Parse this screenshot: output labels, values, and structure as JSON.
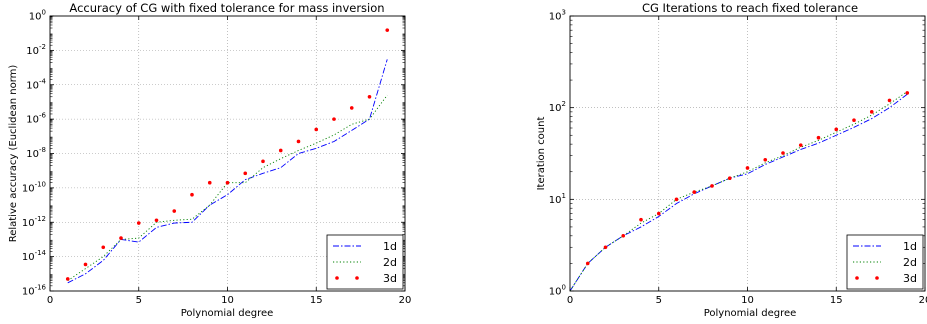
{
  "chart_data": [
    {
      "type": "line",
      "title": "Accuracy of CG with fixed tolerance for mass inversion",
      "xlabel": "Polynomial degree",
      "ylabel": "Relative accuracy (Euclidean norm)",
      "xlim": [
        0,
        20
      ],
      "ylim": [
        1e-16,
        1
      ],
      "yscale": "log",
      "grid": true,
      "legend_position": "lower-right",
      "x_ticks": [
        {
          "value": 0,
          "label": "0"
        },
        {
          "value": 5,
          "label": "5"
        },
        {
          "value": 10,
          "label": "10"
        },
        {
          "value": 15,
          "label": "15"
        },
        {
          "value": 20,
          "label": "20"
        }
      ],
      "y_ticks": [
        {
          "value": 1e-16,
          "base": "10",
          "exp": "-16"
        },
        {
          "value": 1e-14,
          "base": "10",
          "exp": "-14"
        },
        {
          "value": 1e-12,
          "base": "10",
          "exp": "-12"
        },
        {
          "value": 1e-10,
          "base": "10",
          "exp": "-10"
        },
        {
          "value": 1e-08,
          "base": "10",
          "exp": "-8"
        },
        {
          "value": 1e-06,
          "base": "10",
          "exp": "-6"
        },
        {
          "value": 0.0001,
          "base": "10",
          "exp": "-4"
        },
        {
          "value": 0.01,
          "base": "10",
          "exp": "-2"
        },
        {
          "value": 1,
          "base": "10",
          "exp": "0"
        }
      ],
      "series": [
        {
          "name": "1d",
          "style": "dashdot",
          "color": "#0000ff",
          "x": [
            1,
            2,
            3,
            4,
            5,
            6,
            7,
            8,
            9,
            10,
            11,
            12,
            13,
            14,
            15,
            16,
            17,
            18,
            19
          ],
          "y": [
            3e-16,
            1e-15,
            6e-15,
            1e-13,
            7e-14,
            5e-13,
            9e-13,
            1e-12,
            1e-11,
            4e-11,
            3e-10,
            7e-10,
            1.5e-09,
            1e-08,
            2e-08,
            5e-08,
            2.2e-07,
            1e-06,
            0.003
          ]
        },
        {
          "name": "2d",
          "style": "dotted",
          "color": "#008000",
          "x": [
            1,
            2,
            3,
            4,
            5,
            6,
            7,
            8,
            9,
            10,
            11,
            12,
            13,
            14,
            15,
            16,
            17,
            18,
            19
          ],
          "y": [
            4e-16,
            2e-15,
            1e-14,
            1e-13,
            1.2e-13,
            1e-12,
            1.3e-12,
            1.5e-12,
            1e-11,
            2e-10,
            2e-10,
            1.5e-09,
            5e-09,
            1.5e-08,
            4e-08,
            1.2e-07,
            5e-07,
            1e-06,
            2.5e-05
          ]
        },
        {
          "name": "3d",
          "style": "markers",
          "color": "#ff0000",
          "x": [
            1,
            2,
            3,
            4,
            5,
            6,
            7,
            8,
            9,
            10,
            11,
            12,
            13,
            14,
            15,
            16,
            17,
            18,
            19
          ],
          "y": [
            5e-16,
            3.5e-15,
            3.5e-14,
            1.2e-13,
            9e-13,
            1.3e-12,
            4.5e-12,
            4e-11,
            2e-10,
            2e-10,
            7e-10,
            3.5e-09,
            1.5e-08,
            5e-08,
            2.5e-07,
            1e-06,
            4.5e-06,
            2e-05,
            0.15
          ]
        }
      ]
    },
    {
      "type": "line",
      "title": "CG Iterations to reach fixed tolerance",
      "xlabel": "Polynomial degree",
      "ylabel": "Iteration count",
      "xlim": [
        0,
        20
      ],
      "ylim": [
        1,
        1000
      ],
      "yscale": "log",
      "grid": true,
      "legend_position": "lower-right",
      "x_ticks": [
        {
          "value": 0,
          "label": "0"
        },
        {
          "value": 5,
          "label": "5"
        },
        {
          "value": 10,
          "label": "10"
        },
        {
          "value": 15,
          "label": "15"
        },
        {
          "value": 20,
          "label": "20"
        }
      ],
      "y_ticks": [
        {
          "value": 1,
          "base": "10",
          "exp": "0"
        },
        {
          "value": 10,
          "base": "10",
          "exp": "1"
        },
        {
          "value": 100,
          "base": "10",
          "exp": "2"
        },
        {
          "value": 1000,
          "base": "10",
          "exp": "3"
        }
      ],
      "series": [
        {
          "name": "1d",
          "style": "dashdot",
          "color": "#0000ff",
          "x": [
            0,
            1,
            2,
            3,
            4,
            5,
            6,
            7,
            8,
            9,
            10,
            11,
            12,
            13,
            14,
            15,
            16,
            17,
            18,
            19
          ],
          "y": [
            1,
            2,
            3,
            4,
            5,
            6.5,
            9,
            11.5,
            14,
            17,
            19,
            24,
            29,
            35,
            41,
            50,
            61,
            76,
            100,
            140
          ]
        },
        {
          "name": "2d",
          "style": "dotted",
          "color": "#008000",
          "x": [
            0,
            1,
            2,
            3,
            4,
            5,
            6,
            7,
            8,
            9,
            10,
            11,
            12,
            13,
            14,
            15,
            16,
            17,
            18,
            19
          ],
          "y": [
            1,
            2,
            3,
            4,
            5.5,
            7,
            10,
            12,
            14,
            17,
            20,
            25,
            30,
            37,
            44,
            54,
            66,
            83,
            110,
            150
          ]
        },
        {
          "name": "3d",
          "style": "markers",
          "color": "#ff0000",
          "x": [
            1,
            2,
            3,
            4,
            5,
            6,
            7,
            8,
            9,
            10,
            11,
            12,
            13,
            14,
            15,
            16,
            17,
            18,
            19
          ],
          "y": [
            2,
            3,
            4,
            6,
            7,
            10,
            12,
            14,
            17,
            22,
            27,
            32,
            39,
            47,
            58,
            73,
            90,
            120,
            145
          ]
        }
      ]
    }
  ]
}
